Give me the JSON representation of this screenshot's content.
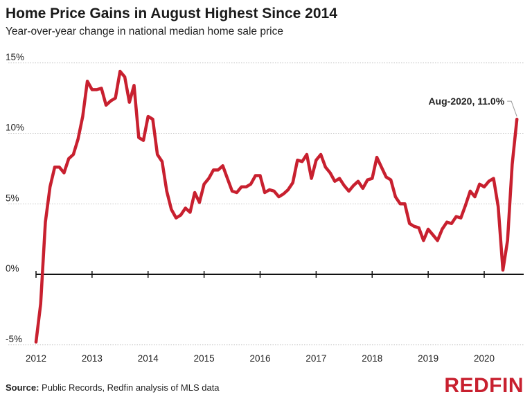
{
  "chart_data": {
    "type": "line",
    "title": "Home Price Gains in August Highest Since 2014",
    "subtitle": "Year-over-year change in national median home sale price",
    "xlabel": "",
    "ylabel": "",
    "x_start": "2012-01",
    "x_frequency": "monthly",
    "x_ticks": [
      "2012",
      "2013",
      "2014",
      "2015",
      "2016",
      "2017",
      "2018",
      "2019",
      "2020"
    ],
    "y_ticks": [
      "15%",
      "10%",
      "5%",
      "0%",
      "-5%"
    ],
    "y_tick_values": [
      15,
      10,
      5,
      0,
      -5
    ],
    "ylim": [
      -5,
      15
    ],
    "grid": true,
    "color": "#c8202f",
    "series": [
      {
        "values": [
          -4.8,
          -2.1,
          3.7,
          6.2,
          7.6,
          7.6,
          7.2,
          8.2,
          8.5,
          9.6,
          11.2,
          13.7,
          13.1,
          13.1,
          13.2,
          12.0,
          12.3,
          12.5,
          14.4,
          14.0,
          12.2,
          13.4,
          9.7,
          9.5,
          11.2,
          11.0,
          8.5,
          8.0,
          5.9,
          4.6,
          4.0,
          4.2,
          4.7,
          4.4,
          5.8,
          5.1,
          6.4,
          6.8,
          7.4,
          7.4,
          7.7,
          6.8,
          5.9,
          5.8,
          6.2,
          6.2,
          6.4,
          7.0,
          7.0,
          5.8,
          6.0,
          5.9,
          5.5,
          5.7,
          6.0,
          6.5,
          8.1,
          8.0,
          8.5,
          6.8,
          8.1,
          8.5,
          7.6,
          7.2,
          6.6,
          6.8,
          6.3,
          5.9,
          6.3,
          6.6,
          6.1,
          6.7,
          6.8,
          8.3,
          7.6,
          6.9,
          6.7,
          5.5,
          5.0,
          5.0,
          3.6,
          3.4,
          3.3,
          2.4,
          3.2,
          2.8,
          2.4,
          3.2,
          3.7,
          3.6,
          4.1,
          4.0,
          4.9,
          5.9,
          5.5,
          6.4,
          6.2,
          6.6,
          6.8,
          4.8,
          0.3,
          2.4,
          7.8,
          11.0
        ]
      }
    ],
    "annotation": {
      "text": "Aug-2020, 11.0%",
      "x": "2020-08",
      "y": 11.0
    }
  },
  "footer": {
    "source_label": "Source:",
    "source_text": " Public Records, Redfin analysis of MLS data",
    "logo": "REDFIN"
  }
}
